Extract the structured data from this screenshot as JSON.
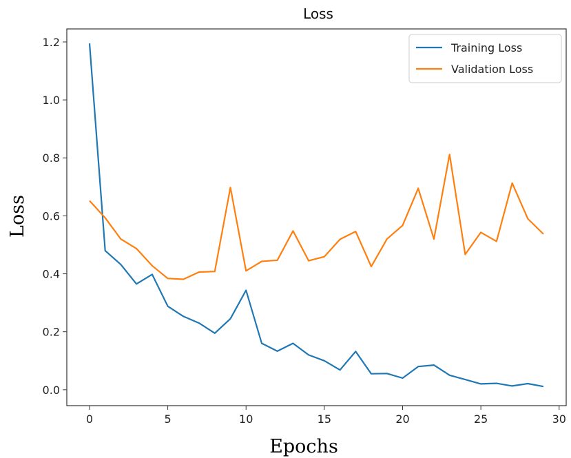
{
  "chart_data": {
    "type": "line",
    "title": "Loss",
    "xlabel": "Epochs",
    "ylabel": "Loss",
    "xlim": [
      -1.45,
      30.45
    ],
    "ylim": [
      -0.055,
      1.245
    ],
    "x_ticks": [
      0,
      5,
      10,
      15,
      20,
      25,
      30
    ],
    "y_ticks": [
      0.0,
      0.2,
      0.4,
      0.6,
      0.8,
      1.0,
      1.2
    ],
    "x_tick_labels": [
      "0",
      "5",
      "10",
      "15",
      "20",
      "25",
      "30"
    ],
    "y_tick_labels": [
      "0.0",
      "0.2",
      "0.4",
      "0.6",
      "0.8",
      "1.0",
      "1.2"
    ],
    "grid": false,
    "legend_position": "top-right",
    "x": [
      0,
      1,
      2,
      3,
      4,
      5,
      6,
      7,
      8,
      9,
      10,
      11,
      12,
      13,
      14,
      15,
      16,
      17,
      18,
      19,
      20,
      21,
      22,
      23,
      24,
      25,
      26,
      27,
      28,
      29
    ],
    "series": [
      {
        "name": "Training Loss",
        "color": "#1f77b4",
        "values": [
          1.195,
          0.48,
          0.432,
          0.365,
          0.398,
          0.288,
          0.253,
          0.23,
          0.195,
          0.245,
          0.343,
          0.16,
          0.133,
          0.16,
          0.12,
          0.1,
          0.068,
          0.132,
          0.055,
          0.056,
          0.04,
          0.08,
          0.085,
          0.05,
          0.035,
          0.02,
          0.022,
          0.013,
          0.021,
          0.011
        ]
      },
      {
        "name": "Validation Loss",
        "color": "#ff7f0e",
        "values": [
          0.652,
          0.593,
          0.52,
          0.487,
          0.428,
          0.384,
          0.381,
          0.406,
          0.408,
          0.698,
          0.41,
          0.443,
          0.447,
          0.548,
          0.445,
          0.459,
          0.519,
          0.546,
          0.425,
          0.52,
          0.567,
          0.695,
          0.52,
          0.812,
          0.467,
          0.543,
          0.512,
          0.713,
          0.59,
          0.537
        ]
      }
    ]
  }
}
